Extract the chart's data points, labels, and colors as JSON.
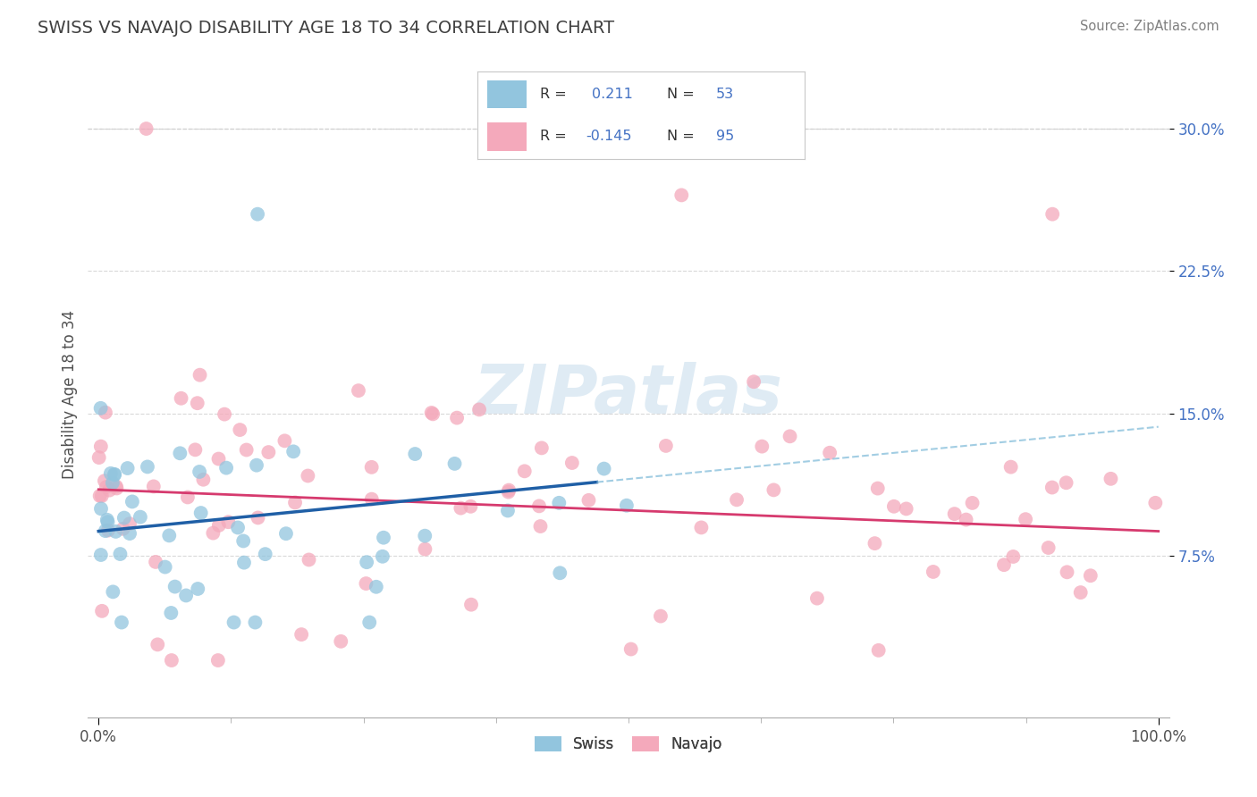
{
  "title": "SWISS VS NAVAJO DISABILITY AGE 18 TO 34 CORRELATION CHART",
  "source_text": "Source: ZipAtlas.com",
  "ylabel": "Disability Age 18 to 34",
  "xlim": [
    0,
    100
  ],
  "ylim": [
    0,
    32
  ],
  "xtick_labels": [
    "0.0%",
    "100.0%"
  ],
  "ytick_values": [
    7.5,
    15.0,
    22.5,
    30.0
  ],
  "ytick_labels": [
    "7.5%",
    "15.0%",
    "22.5%",
    "30.0%"
  ],
  "legend_r_swiss": "0.211",
  "legend_n_swiss": "53",
  "legend_r_navajo": "-0.145",
  "legend_n_navajo": "95",
  "swiss_color": "#92c5de",
  "navajo_color": "#f4a9bb",
  "trend_swiss_color": "#1f5fa6",
  "trend_navajo_color": "#d63a6e",
  "dashed_line_color": "#92c5de",
  "ytick_color": "#4472c4",
  "legend_text_color": "#4472c4",
  "watermark_color": "#b8d4e8",
  "grid_color": "#d0d0d0",
  "title_color": "#404040",
  "source_color": "#808080"
}
